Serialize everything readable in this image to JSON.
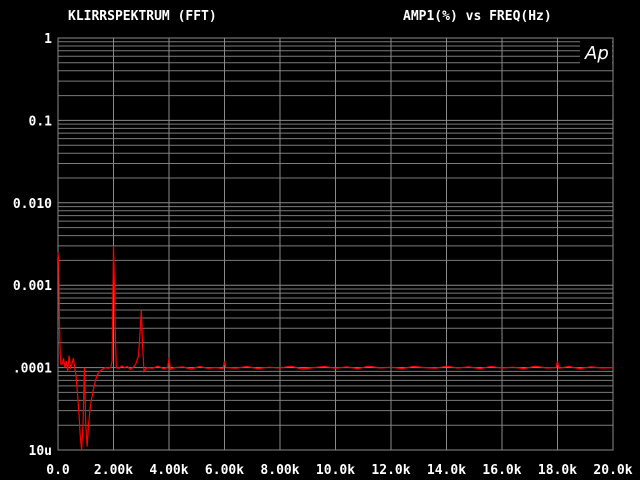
{
  "chart_data": {
    "type": "line",
    "title": "KLIRRSPEKTRUM (FFT)",
    "subtitle": "AMP1(%) vs FREQ(Hz)",
    "xlabel": "FREQ(Hz)",
    "ylabel": "AMP1(%)",
    "xlim": [
      0,
      20000
    ],
    "ylim": [
      1e-05,
      1
    ],
    "yscale": "log",
    "grid": true,
    "x_tick_labels": [
      "0.0",
      "2.00k",
      "4.00k",
      "6.00k",
      "8.00k",
      "10.0k",
      "12.0k",
      "14.0k",
      "16.0k",
      "18.0k",
      "20.0k"
    ],
    "x_ticks": [
      0,
      2000,
      4000,
      6000,
      8000,
      10000,
      12000,
      14000,
      16000,
      18000,
      20000
    ],
    "y_tick_labels": [
      "1",
      "0.1",
      "0.010",
      "0.001",
      ".0001",
      "10u"
    ],
    "y_ticks": [
      1,
      0.1,
      0.01,
      0.001,
      0.0001,
      1e-05
    ],
    "logo": "Ap",
    "series_color": "#ff0000",
    "series": [
      {
        "points": [
          [
            0,
            0.0025
          ],
          [
            30,
            0.0018
          ],
          [
            50,
            0.0004
          ],
          [
            80,
            0.00015
          ],
          [
            100,
            0.00011
          ],
          [
            150,
            0.00011
          ],
          [
            200,
            0.00013
          ],
          [
            250,
            0.0001
          ],
          [
            300,
            0.00012
          ],
          [
            350,
            9e-05
          ],
          [
            400,
            0.00014
          ],
          [
            450,
            0.0001
          ],
          [
            500,
            0.00011
          ],
          [
            550,
            0.00013
          ],
          [
            600,
            0.0001
          ],
          [
            650,
            8e-05
          ],
          [
            700,
            5e-05
          ],
          [
            750,
            3e-05
          ],
          [
            800,
            1.5e-05
          ],
          [
            850,
            1e-05
          ],
          [
            900,
            2e-05
          ],
          [
            950,
            0.0001
          ],
          [
            1000,
            2e-05
          ],
          [
            1050,
            1.1e-05
          ],
          [
            1100,
            2e-05
          ],
          [
            1150,
            3e-05
          ],
          [
            1200,
            4e-05
          ],
          [
            1300,
            6e-05
          ],
          [
            1400,
            8e-05
          ],
          [
            1500,
            9e-05
          ],
          [
            1600,
            9.5e-05
          ],
          [
            1700,
            0.0001
          ],
          [
            1800,
            9.8e-05
          ],
          [
            1900,
            0.0001
          ],
          [
            1950,
            0.00012
          ],
          [
            2000,
            0.003
          ],
          [
            2030,
            0.0012
          ],
          [
            2060,
            0.0003
          ],
          [
            2100,
            0.0001
          ],
          [
            2200,
            9.8e-05
          ],
          [
            2300,
            0.000105
          ],
          [
            2400,
            0.0001
          ],
          [
            2500,
            0.000103
          ],
          [
            2600,
            9.5e-05
          ],
          [
            2700,
            0.0001
          ],
          [
            2800,
            0.00011
          ],
          [
            2900,
            0.00014
          ],
          [
            2950,
            0.00025
          ],
          [
            3000,
            0.0005
          ],
          [
            3050,
            0.00018
          ],
          [
            3100,
            9e-05
          ],
          [
            3200,
            0.0001
          ],
          [
            3400,
            9.8e-05
          ],
          [
            3600,
            0.000104
          ],
          [
            3800,
            9.7e-05
          ],
          [
            3950,
            0.0001
          ],
          [
            4000,
            0.00013
          ],
          [
            4050,
            9.5e-05
          ],
          [
            4200,
            0.0001
          ],
          [
            4500,
            0.000102
          ],
          [
            4800,
            9.6e-05
          ],
          [
            5100,
            0.000103
          ],
          [
            5400,
            9.8e-05
          ],
          [
            5700,
            0.0001
          ],
          [
            5950,
            9.7e-05
          ],
          [
            6000,
            0.00012
          ],
          [
            6050,
            0.0001
          ],
          [
            6400,
            9.8e-05
          ],
          [
            6800,
            0.000103
          ],
          [
            7200,
            9.7e-05
          ],
          [
            7600,
            0.000101
          ],
          [
            8000,
            9.9e-05
          ],
          [
            8400,
            0.000104
          ],
          [
            8800,
            9.6e-05
          ],
          [
            9200,
            0.0001
          ],
          [
            9600,
            0.000103
          ],
          [
            10000,
            9.8e-05
          ],
          [
            10400,
            0.000102
          ],
          [
            10800,
            9.7e-05
          ],
          [
            11200,
            0.000104
          ],
          [
            11600,
            9.9e-05
          ],
          [
            12000,
            0.000101
          ],
          [
            12400,
            9.7e-05
          ],
          [
            12800,
            0.000103
          ],
          [
            13200,
            0.0001
          ],
          [
            13600,
            9.8e-05
          ],
          [
            14000,
            0.000104
          ],
          [
            14400,
            9.9e-05
          ],
          [
            14800,
            0.000102
          ],
          [
            15200,
            9.7e-05
          ],
          [
            15600,
            0.000103
          ],
          [
            16000,
            9.9e-05
          ],
          [
            16400,
            0.000101
          ],
          [
            16800,
            9.7e-05
          ],
          [
            17200,
            0.000104
          ],
          [
            17600,
            9.9e-05
          ],
          [
            17950,
            0.0001
          ],
          [
            18000,
            0.00012
          ],
          [
            18050,
            9.8e-05
          ],
          [
            18400,
            0.000103
          ],
          [
            18800,
            9.7e-05
          ],
          [
            19200,
            0.000102
          ],
          [
            19600,
            9.9e-05
          ],
          [
            20000,
            0.0001
          ]
        ]
      }
    ]
  }
}
